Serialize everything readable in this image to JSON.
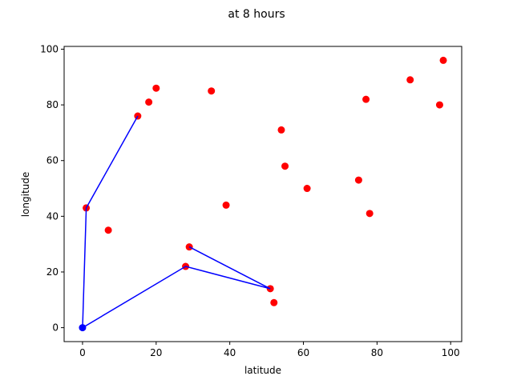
{
  "chart_data": {
    "type": "scatter",
    "title": "at 8 hours",
    "xlabel": "latitude",
    "ylabel": "longitude",
    "xlim": [
      -5,
      103
    ],
    "ylim": [
      -5,
      101
    ],
    "xticks": [
      0,
      20,
      40,
      60,
      80,
      100
    ],
    "yticks": [
      0,
      20,
      40,
      60,
      80,
      100
    ],
    "grid": false,
    "points": {
      "color": "#ff0000",
      "x": [
        98,
        89,
        97,
        77,
        35,
        20,
        18,
        15,
        54,
        55,
        61,
        75,
        78,
        39,
        1,
        7,
        29,
        28,
        51,
        52
      ],
      "y": [
        96,
        89,
        80,
        82,
        85,
        86,
        81,
        76,
        71,
        58,
        50,
        53,
        41,
        44,
        43,
        35,
        29,
        22,
        14,
        9
      ]
    },
    "route": {
      "color": "#0000ff",
      "x": [
        15,
        1,
        0,
        28,
        51,
        29
      ],
      "y": [
        76,
        43,
        0,
        22,
        14,
        29
      ]
    }
  }
}
